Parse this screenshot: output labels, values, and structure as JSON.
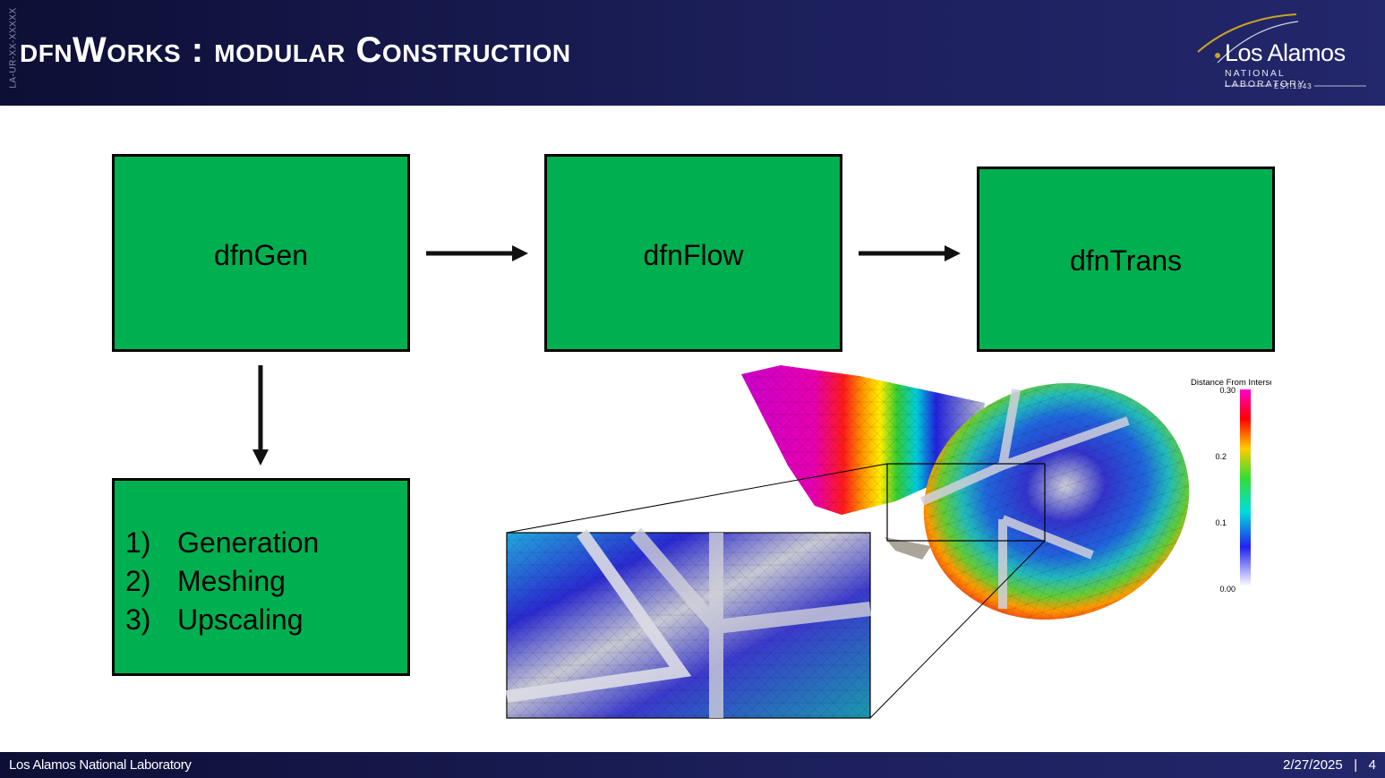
{
  "header": {
    "side_code": "LA-UR-XX-XXXXX",
    "title": "dfnWorks : modular Construction",
    "logo": {
      "name": "Los Alamos",
      "subtitle": "NATIONAL LABORATORY",
      "established": "EST.1943"
    }
  },
  "diagram": {
    "boxes": {
      "gen": "dfnGen",
      "flow": "dfnFlow",
      "trans": "dfnTrans"
    },
    "steps": [
      {
        "num": "1)",
        "label": "Generation"
      },
      {
        "num": "2)",
        "label": "Meshing"
      },
      {
        "num": "3)",
        "label": "Upscaling"
      }
    ],
    "colors": {
      "box_fill": "#00b050",
      "arrow": "#111111"
    }
  },
  "visualization": {
    "colorbar_title": "Distance From Intersection",
    "ticks": [
      "0.30",
      "0.2",
      "0.1",
      "0.00"
    ]
  },
  "footer": {
    "org": "Los Alamos National Laboratory",
    "date": "2/27/2025",
    "separator": "|",
    "page": "4"
  }
}
